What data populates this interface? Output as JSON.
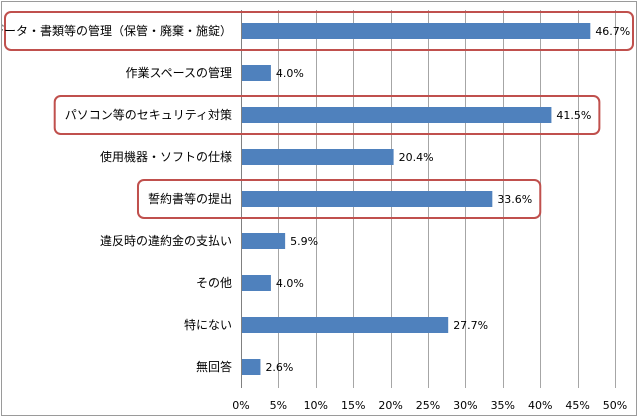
{
  "chart_data": {
    "type": "bar",
    "orientation": "horizontal",
    "categories": [
      "データ・書類等の管理（保管・廃棄・施錠）",
      "作業スペースの管理",
      "パソコン等のセキュリティ対策",
      "使用機器・ソフトの仕様",
      "誓約書等の提出",
      "違反時の違約金の支払い",
      "その他",
      "特にない",
      "無回答"
    ],
    "values": [
      46.7,
      4.0,
      41.5,
      20.4,
      33.6,
      5.9,
      4.0,
      27.7,
      2.6
    ],
    "value_labels": [
      "46.7%",
      "4.0%",
      "41.5%",
      "20.4%",
      "33.6%",
      "5.9%",
      "4.0%",
      "27.7%",
      "2.6%"
    ],
    "highlighted": [
      0,
      2,
      4
    ],
    "xlim": [
      0,
      50
    ],
    "xticks": [
      0,
      5,
      10,
      15,
      20,
      25,
      30,
      35,
      40,
      45,
      50
    ],
    "xtick_labels": [
      "0%",
      "5%",
      "10%",
      "15%",
      "20%",
      "25%",
      "30%",
      "35%",
      "40%",
      "45%",
      "50%"
    ],
    "grid": true,
    "legend": "none",
    "colors": {
      "bar": "#4f81bd",
      "highlight_box": "#c0504d",
      "grid": "#a6a6a6"
    }
  }
}
